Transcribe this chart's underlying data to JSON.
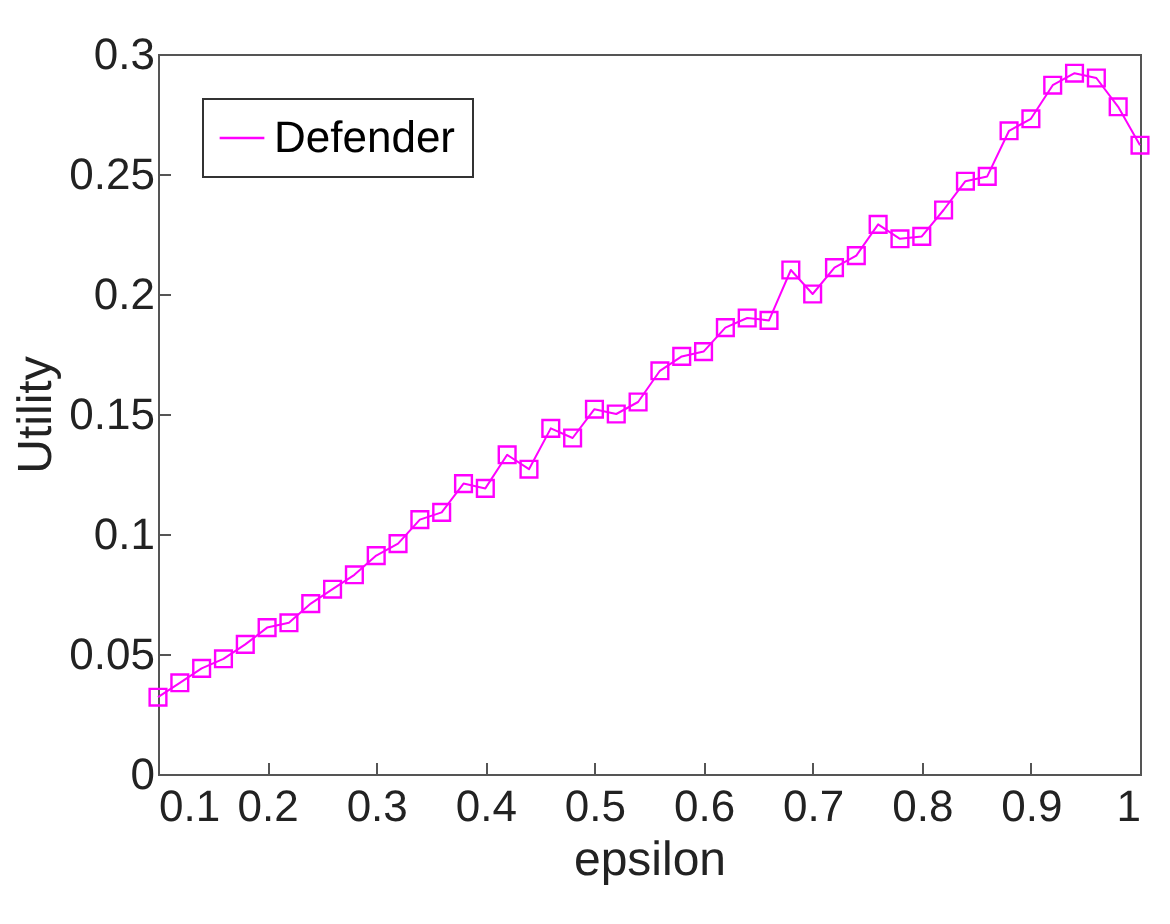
{
  "chart_data": {
    "type": "line",
    "xlabel": "epsilon",
    "ylabel": "Utility",
    "x": [
      0.1,
      0.12,
      0.14,
      0.16,
      0.18,
      0.2,
      0.22,
      0.24,
      0.26,
      0.28,
      0.3,
      0.32,
      0.34,
      0.36,
      0.38,
      0.4,
      0.42,
      0.44,
      0.46,
      0.48,
      0.5,
      0.52,
      0.54,
      0.56,
      0.58,
      0.6,
      0.62,
      0.64,
      0.66,
      0.68,
      0.7,
      0.72,
      0.74,
      0.76,
      0.78,
      0.8,
      0.82,
      0.84,
      0.86,
      0.88,
      0.9,
      0.92,
      0.94,
      0.96,
      0.98,
      1.0
    ],
    "series": [
      {
        "name": "Defender",
        "color": "#ff00ff",
        "values": [
          0.032,
          0.038,
          0.044,
          0.048,
          0.054,
          0.061,
          0.063,
          0.071,
          0.077,
          0.083,
          0.091,
          0.096,
          0.106,
          0.109,
          0.121,
          0.119,
          0.133,
          0.127,
          0.144,
          0.14,
          0.152,
          0.15,
          0.155,
          0.168,
          0.174,
          0.176,
          0.186,
          0.19,
          0.189,
          0.21,
          0.2,
          0.211,
          0.216,
          0.229,
          0.223,
          0.224,
          0.235,
          0.247,
          0.249,
          0.268,
          0.273,
          0.287,
          0.292,
          0.29,
          0.278,
          0.262
        ]
      }
    ],
    "xlim": [
      0.1,
      1
    ],
    "xticks": [
      0.1,
      0.2,
      0.3,
      0.4,
      0.5,
      0.6,
      0.7,
      0.8,
      0.9,
      1
    ],
    "ylim": [
      0,
      0.3
    ],
    "yticks": [
      0,
      0.05,
      0.1,
      0.15,
      0.2,
      0.25,
      0.3
    ],
    "grid": false,
    "legend": "top left",
    "marker": "square",
    "line_style": "solid"
  }
}
